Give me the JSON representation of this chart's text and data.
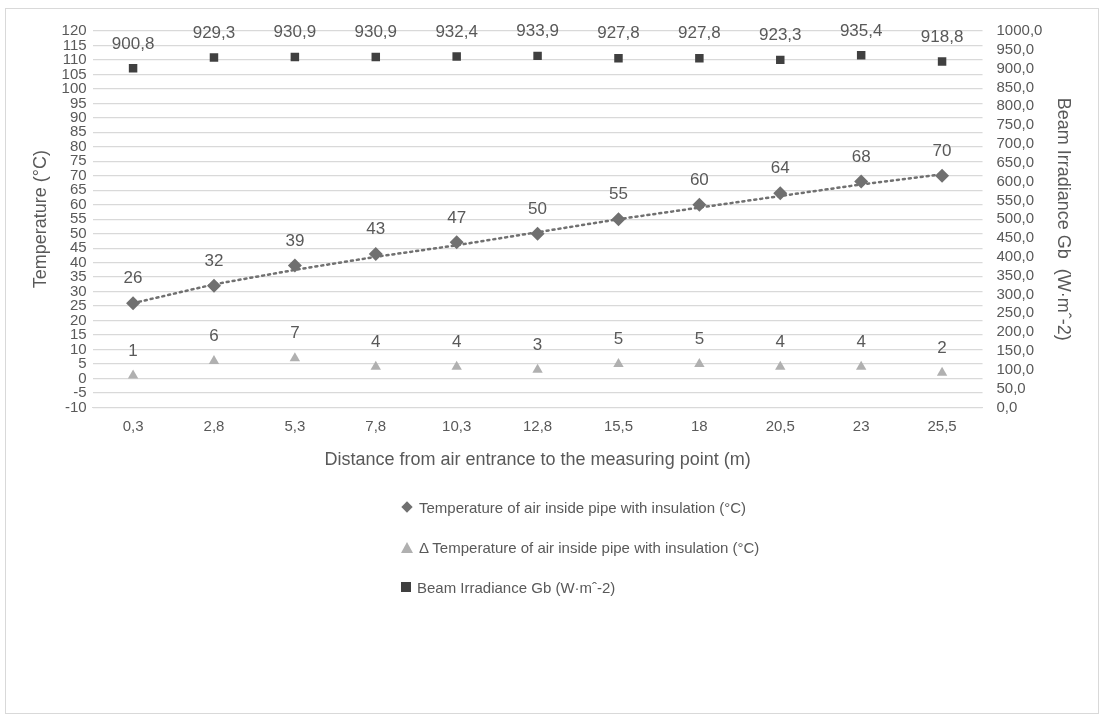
{
  "chart_data": {
    "type": "scatter",
    "categories": [
      "0,3",
      "2,8",
      "5,3",
      "7,8",
      "10,3",
      "12,8",
      "15,5",
      "18",
      "20,5",
      "23",
      "25,5"
    ],
    "xlabel": "Distance from air entrance to the measuring point (m)",
    "ylabel": "Temperature (°C)",
    "y2label": "Beam Irradiance Gb  (W·mˆ-2)",
    "ylim": [
      -10,
      120
    ],
    "yticks": [
      -10,
      -5,
      0,
      5,
      10,
      15,
      20,
      25,
      30,
      35,
      40,
      45,
      50,
      55,
      60,
      65,
      70,
      75,
      80,
      85,
      90,
      95,
      100,
      105,
      110,
      115,
      120
    ],
    "y2lim": [
      0,
      1000
    ],
    "y2ticks": [
      {
        "value": 0,
        "label": "0,0"
      },
      {
        "value": 50,
        "label": "50,0"
      },
      {
        "value": 100,
        "label": "100,0"
      },
      {
        "value": 150,
        "label": "150,0"
      },
      {
        "value": 200,
        "label": "200,0"
      },
      {
        "value": 250,
        "label": "250,0"
      },
      {
        "value": 300,
        "label": "300,0"
      },
      {
        "value": 350,
        "label": "350,0"
      },
      {
        "value": 400,
        "label": "400,0"
      },
      {
        "value": 450,
        "label": "450,0"
      },
      {
        "value": 500,
        "label": "500,0"
      },
      {
        "value": 550,
        "label": "550,0"
      },
      {
        "value": 600,
        "label": "600,0"
      },
      {
        "value": 650,
        "label": "650,0"
      },
      {
        "value": 700,
        "label": "700,0"
      },
      {
        "value": 750,
        "label": "750,0"
      },
      {
        "value": 800,
        "label": "800,0"
      },
      {
        "value": 850,
        "label": "850,0"
      },
      {
        "value": 900,
        "label": "900,0"
      },
      {
        "value": 950,
        "label": "950,0"
      },
      {
        "value": 1000,
        "label": "1000,0"
      }
    ],
    "grid": "y",
    "legend": "bottom",
    "series": [
      {
        "name": "Temperature of air inside pipe with insulation (°C)",
        "type": "scatter",
        "marker": "diamond",
        "color": "#707070",
        "values": [
          26,
          32,
          39,
          43,
          47,
          50,
          55,
          60,
          64,
          68,
          70
        ],
        "value_labels": [
          "26",
          "32",
          "39",
          "43",
          "47",
          "50",
          "55",
          "60",
          "64",
          "68",
          "70"
        ]
      },
      {
        "name": "Δ Temperature of air inside pipe with insulation (°C)",
        "type": "scatter",
        "marker": "triangle",
        "color": "#b0b0b0",
        "values": [
          1,
          6,
          7,
          4,
          4,
          3,
          5,
          5,
          4,
          4,
          2
        ],
        "value_labels": [
          "1",
          "6",
          "7",
          "4",
          "4",
          "3",
          "5",
          "5",
          "4",
          "4",
          "2"
        ]
      },
      {
        "name": "Beam Irradiance Gb  (W·mˆ-2)",
        "type": "scatter",
        "marker": "square",
        "color": "#404040",
        "axis": "y2",
        "values": [
          900.8,
          929.3,
          930.9,
          930.9,
          932.4,
          933.9,
          927.8,
          927.8,
          923.3,
          935.4,
          918.8
        ],
        "value_labels": [
          "900,8",
          "929,3",
          "930,9",
          "930,9",
          "932,4",
          "933,9",
          "927,8",
          "927,8",
          "923,3",
          "935,4",
          "918,8"
        ]
      },
      {
        "type": "line",
        "marker": "none",
        "line_style": "dotted",
        "color": "#707070",
        "values": [
          26,
          32.5,
          37.5,
          42,
          46,
          50.5,
          55,
          59,
          63,
          67,
          70.5
        ]
      }
    ]
  }
}
